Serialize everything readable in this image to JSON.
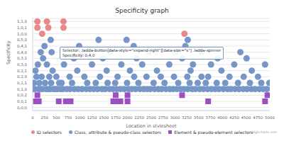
{
  "chart_data": {
    "type": "scatter",
    "title": "Specificity graph",
    "x_label": "Location in stylesheet",
    "y_label": "Specificity",
    "credit": "Highcharts.com",
    "annotations": [
      "Selector: .ladda-button[data-style=\"expand-right\"][data-size=\"s\"] .ladda-spinner",
      "Specificity: 0,4,0"
    ],
    "xlim": [
      0,
      5000
    ],
    "xticks": [
      0,
      250,
      500,
      750,
      1000,
      1250,
      1500,
      1750,
      2000,
      2250,
      2500,
      2750,
      3000,
      3250,
      3500,
      3750,
      4000,
      4250,
      4500,
      4750,
      5000
    ],
    "ylim": [
      -0.5,
      14.5
    ],
    "yticks": [
      {
        "value": 0,
        "label": "0,0,0"
      },
      {
        "value": 1,
        "label": "0,0,1"
      },
      {
        "value": 2,
        "label": "0,0,2"
      },
      {
        "value": 3,
        "label": "0,1,0"
      },
      {
        "value": 4,
        "label": "0,1,1"
      },
      {
        "value": 5,
        "label": "0,2,0"
      },
      {
        "value": 6,
        "label": "0,2,1"
      },
      {
        "value": 7,
        "label": "0,3,0"
      },
      {
        "value": 8,
        "label": "0,3,1"
      },
      {
        "value": 9,
        "label": "0,4,0"
      },
      {
        "value": 10,
        "label": "0,4,1"
      },
      {
        "value": 11,
        "label": "0,5,0"
      },
      {
        "value": 12,
        "label": "1,0,0"
      },
      {
        "value": 13,
        "label": "1,0,1"
      },
      {
        "value": 14,
        "label": "1,1,0"
      }
    ],
    "grid": true,
    "legend": "bottom",
    "series": [
      {
        "name": "ID selectors",
        "color": "#e8888a",
        "marker": "circle",
        "x": [
          100,
          300,
          650,
          100,
          330,
          650,
          200,
          3200
        ],
        "values": [
          14,
          14,
          14,
          13,
          13,
          13,
          12,
          12
        ]
      },
      {
        "name": "Class, attribute & pseudo-class selectors",
        "color": "#7796c8",
        "marker": "circle",
        "x": [
          10,
          45,
          120,
          160,
          210,
          280,
          330,
          370,
          440,
          480,
          520,
          590,
          640,
          720,
          790,
          880,
          960,
          1040,
          1130,
          1210,
          1290,
          1370,
          1460,
          1530,
          1620,
          1690,
          1770,
          1850,
          1930,
          2020,
          2090,
          2170,
          2260,
          2340,
          2410,
          2480,
          2570,
          2650,
          2720,
          2810,
          2890,
          2960,
          3040,
          3120,
          3190,
          3270,
          3360,
          3430,
          3520,
          3600,
          3690,
          3770,
          3850,
          3930,
          4020,
          4110,
          4180,
          4270,
          4350,
          4440,
          4520,
          4610,
          4690,
          4780,
          4860,
          4940,
          30,
          140,
          260,
          390,
          560,
          610,
          830,
          1150,
          1330,
          1580,
          1740,
          1990,
          2230,
          2550,
          2780,
          3070,
          3310,
          3480,
          3650,
          3880,
          4060,
          4330,
          4580,
          4820,
          4990,
          80,
          190,
          350,
          500,
          780,
          1090,
          1420,
          1790,
          2140,
          2400,
          2700,
          2980,
          3260,
          3560,
          3700,
          4150,
          4450,
          4750,
          60,
          420,
          940,
          1560,
          2050,
          2620,
          3330,
          3980,
          4620,
          110,
          300,
          660,
          1250,
          1870,
          2310,
          2880,
          3380,
          3760,
          4250,
          4900,
          220,
          870,
          1480,
          2190,
          3150,
          3900,
          4510,
          170,
          400,
          1050,
          1640,
          2450,
          3010,
          3550,
          4380,
          250,
          980,
          2130,
          3220,
          380,
          1390,
          1980,
          3270
        ],
        "values": [
          3,
          3,
          3,
          3,
          3,
          3,
          3,
          3,
          3,
          3,
          3,
          3,
          3,
          3,
          3,
          3,
          3,
          3,
          3,
          3,
          3,
          3,
          3,
          3,
          3,
          3,
          3,
          3,
          3,
          3,
          3,
          3,
          3,
          3,
          3,
          3,
          3,
          3,
          3,
          3,
          3,
          3,
          3,
          3,
          3,
          3,
          3,
          3,
          3,
          3,
          3,
          3,
          3,
          3,
          3,
          3,
          3,
          3,
          3,
          3,
          3,
          3,
          3,
          3,
          3,
          3,
          4,
          4,
          4,
          4,
          4,
          4,
          4,
          4,
          4,
          4,
          4,
          4,
          4,
          4,
          4,
          4,
          4,
          4,
          4,
          4,
          4,
          4,
          4,
          4,
          4,
          5,
          5,
          5,
          5,
          5,
          5,
          5,
          5,
          5,
          5,
          5,
          5,
          5,
          5,
          5,
          5,
          5,
          5,
          6,
          6,
          6,
          6,
          6,
          6,
          6,
          6,
          6,
          7,
          7,
          7,
          7,
          7,
          7,
          7,
          7,
          7,
          7,
          7,
          8,
          8,
          8,
          8,
          8,
          8,
          8,
          9,
          9,
          9,
          9,
          9,
          9,
          9,
          9,
          10,
          10,
          10,
          10,
          11,
          11,
          11,
          11
        ]
      },
      {
        "name": "Element & pseudo-element selectors",
        "color": "#9b4fc1",
        "marker": "square",
        "x": [
          70,
          100,
          130,
          550,
          700,
          800,
          1700,
          1800,
          1850,
          2000,
          3700,
          4900,
          100,
          1750,
          2000,
          3150,
          4950
        ],
        "values": [
          1,
          1,
          1,
          1,
          1,
          1,
          1,
          1,
          1,
          1,
          1,
          1,
          2,
          2,
          2,
          2,
          2
        ]
      }
    ]
  }
}
